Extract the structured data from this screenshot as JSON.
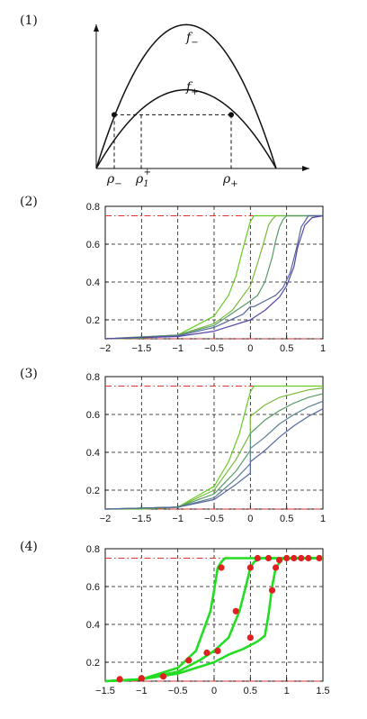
{
  "figure": {
    "panel_labels": [
      "(1)",
      "(2)",
      "(3)",
      "(4)"
    ]
  },
  "chart_data": [
    {
      "type": "line",
      "panel": "(1)",
      "xlim": [
        0,
        1
      ],
      "ylim": [
        0,
        1
      ],
      "series": [
        {
          "name": "f−",
          "x": [
            0,
            0.5,
            1
          ],
          "y": [
            0,
            0.95,
            0
          ]
        },
        {
          "name": "f+",
          "x": [
            0,
            0.5,
            1
          ],
          "y": [
            0,
            0.52,
            0
          ]
        }
      ],
      "labels": {
        "f_minus": {
          "base": "f",
          "sub": "−"
        },
        "f_plus": {
          "base": "f",
          "sub": "+"
        },
        "rho_minus": {
          "base": "ρ",
          "sub": "−"
        },
        "rho_1_plus": {
          "base": "ρ",
          "sub": "1",
          "sup": "+"
        },
        "rho_plus": {
          "base": "ρ",
          "sub": "+"
        }
      },
      "markers": [
        {
          "x": 0.1,
          "y": 0.355
        },
        {
          "x": 0.75,
          "y": 0.355
        }
      ],
      "dashed_level_y": 0.355,
      "dashed_verticals_x": [
        0.1,
        0.25,
        0.75
      ]
    },
    {
      "type": "line",
      "panel": "(2)",
      "xlim": [
        -2,
        1
      ],
      "ylim": [
        0.1,
        0.8
      ],
      "xticks": [
        -2,
        -1.5,
        -1,
        -0.5,
        0,
        0.5,
        1
      ],
      "xtick_labels": [
        "−2",
        "−1.5",
        "−1",
        "−0.5",
        "0",
        "0.5",
        "1"
      ],
      "yticks": [
        0.2,
        0.4,
        0.6,
        0.8
      ],
      "ytick_labels": [
        "0.2",
        "0.4",
        "0.6",
        "0.8"
      ],
      "ref_lines_y": [
        0.75,
        0.1
      ],
      "grid": true,
      "series": [
        {
          "color": "#66cc22",
          "x": [
            -2,
            -1.5,
            -1,
            -0.5,
            -0.3,
            -0.2,
            -0.1,
            0,
            0.05,
            1
          ],
          "y": [
            0.1,
            0.103,
            0.12,
            0.22,
            0.33,
            0.43,
            0.58,
            0.72,
            0.75,
            0.75
          ]
        },
        {
          "color": "#7ab83a",
          "x": [
            -2,
            -1,
            -0.5,
            -0.25,
            0,
            0.1,
            0.2,
            0.25,
            0.3,
            0.35,
            1
          ],
          "y": [
            0.1,
            0.12,
            0.18,
            0.25,
            0.38,
            0.5,
            0.63,
            0.7,
            0.73,
            0.75,
            0.75
          ]
        },
        {
          "color": "#55996a",
          "x": [
            -2,
            -1,
            -0.5,
            0,
            0.1,
            0.2,
            0.3,
            0.35,
            0.4,
            0.45,
            0.5,
            1
          ],
          "y": [
            0.1,
            0.12,
            0.17,
            0.3,
            0.33,
            0.4,
            0.53,
            0.62,
            0.69,
            0.73,
            0.75,
            0.75
          ]
        },
        {
          "color": "#556699",
          "x": [
            -2,
            -1,
            -0.5,
            -0.1,
            0,
            0.05,
            0.2,
            0.35,
            0.45,
            0.55,
            0.65,
            0.7,
            0.8,
            1
          ],
          "y": [
            0.1,
            0.115,
            0.16,
            0.23,
            0.27,
            0.27,
            0.3,
            0.33,
            0.37,
            0.45,
            0.6,
            0.69,
            0.75,
            0.75
          ]
        },
        {
          "color": "#5544aa",
          "x": [
            -2,
            -1,
            -0.5,
            0,
            0.2,
            0.4,
            0.5,
            0.6,
            0.65,
            0.75,
            0.85,
            1
          ],
          "y": [
            0.1,
            0.112,
            0.14,
            0.2,
            0.25,
            0.32,
            0.38,
            0.48,
            0.58,
            0.7,
            0.74,
            0.75
          ]
        }
      ]
    },
    {
      "type": "line",
      "panel": "(3)",
      "xlim": [
        -2,
        1
      ],
      "ylim": [
        0.1,
        0.8
      ],
      "xticks": [
        -2,
        -1.5,
        -1,
        -0.5,
        0,
        0.5,
        1
      ],
      "xtick_labels": [
        "−2",
        "−1.5",
        "−1",
        "−0.5",
        "0",
        "0.5",
        "1"
      ],
      "yticks": [
        0.2,
        0.4,
        0.6,
        0.8
      ],
      "ytick_labels": [
        "0.2",
        "0.4",
        "0.6",
        "0.8"
      ],
      "ref_lines_y": [
        0.75,
        0.1
      ],
      "grid": true,
      "series": [
        {
          "color": "#66cc22",
          "x": [
            -2,
            -1.5,
            -1,
            -0.5,
            -0.3,
            -0.15,
            0,
            0.05,
            1
          ],
          "y": [
            0.1,
            0.1,
            0.11,
            0.22,
            0.35,
            0.5,
            0.72,
            0.75,
            0.75
          ]
        },
        {
          "color": "#7ab83a",
          "x": [
            -2,
            -1,
            -0.5,
            -0.2,
            0,
            0,
            0.2,
            0.4,
            0.6,
            0.8,
            1
          ],
          "y": [
            0.1,
            0.11,
            0.2,
            0.36,
            0.5,
            0.59,
            0.65,
            0.69,
            0.71,
            0.73,
            0.74
          ]
        },
        {
          "color": "#5a9a6a",
          "x": [
            -2,
            -1,
            -0.5,
            -0.2,
            0,
            0,
            0.2,
            0.4,
            0.6,
            0.8,
            1
          ],
          "y": [
            0.1,
            0.11,
            0.18,
            0.3,
            0.41,
            0.5,
            0.57,
            0.62,
            0.66,
            0.69,
            0.71
          ]
        },
        {
          "color": "#5a8090",
          "x": [
            -2,
            -1,
            -0.5,
            -0.2,
            0,
            0,
            0.2,
            0.4,
            0.6,
            0.8,
            1
          ],
          "y": [
            0.1,
            0.11,
            0.16,
            0.26,
            0.34,
            0.42,
            0.48,
            0.55,
            0.6,
            0.64,
            0.67
          ]
        },
        {
          "color": "#5566a0",
          "x": [
            -2,
            -1,
            -0.5,
            -0.2,
            0,
            0,
            0.2,
            0.4,
            0.6,
            0.8,
            1
          ],
          "y": [
            0.1,
            0.11,
            0.15,
            0.23,
            0.29,
            0.35,
            0.41,
            0.48,
            0.54,
            0.59,
            0.63
          ]
        }
      ]
    },
    {
      "type": "line",
      "panel": "(4)",
      "xlim": [
        -1.5,
        1.5
      ],
      "ylim": [
        0.1,
        0.8
      ],
      "xticks": [
        -1.5,
        -1,
        -0.5,
        0,
        0.5,
        1,
        1.5
      ],
      "xtick_labels": [
        "−1.5",
        "−1",
        "−0.5",
        "0",
        "0.5",
        "1",
        "1.5"
      ],
      "yticks": [
        0.2,
        0.4,
        0.6,
        0.8
      ],
      "ytick_labels": [
        "0.2",
        "0.4",
        "0.6",
        "0.8"
      ],
      "ref_lines_y": [
        0.75,
        0.1
      ],
      "grid": true,
      "series": [
        {
          "color": "#22dd22",
          "x": [
            -1.5,
            -1,
            -0.5,
            -0.25,
            -0.05,
            0,
            0.05,
            0.1,
            0.15,
            1.5
          ],
          "y": [
            0.1,
            0.11,
            0.17,
            0.26,
            0.47,
            0.58,
            0.7,
            0.73,
            0.75,
            0.75
          ]
        },
        {
          "color": "#22dd22",
          "x": [
            -1.5,
            -1,
            -0.5,
            -0.2,
            0,
            0.2,
            0.35,
            0.45,
            0.5,
            0.55,
            0.65,
            1.5
          ],
          "y": [
            0.1,
            0.11,
            0.15,
            0.21,
            0.26,
            0.33,
            0.47,
            0.62,
            0.7,
            0.73,
            0.75,
            0.75
          ]
        },
        {
          "color": "#22dd22",
          "x": [
            -1.5,
            -1,
            -0.5,
            0,
            0.2,
            0.4,
            0.5,
            0.6,
            0.7,
            0.75,
            0.8,
            0.85,
            0.95,
            1.5
          ],
          "y": [
            0.1,
            0.11,
            0.14,
            0.2,
            0.24,
            0.27,
            0.29,
            0.31,
            0.34,
            0.45,
            0.6,
            0.7,
            0.75,
            0.75
          ]
        }
      ],
      "points": {
        "color": "#e02020",
        "x": [
          -1.3,
          -1,
          -0.7,
          -0.35,
          -0.1,
          0.05,
          0.1,
          0.3,
          0.5,
          0.5,
          0.6,
          0.75,
          0.8,
          0.85,
          0.9,
          1,
          1.1,
          1.2,
          1.3,
          1.45
        ],
        "y": [
          0.11,
          0.115,
          0.125,
          0.21,
          0.25,
          0.26,
          0.7,
          0.47,
          0.33,
          0.7,
          0.75,
          0.75,
          0.58,
          0.7,
          0.74,
          0.75,
          0.75,
          0.75,
          0.75,
          0.75
        ]
      }
    }
  ]
}
